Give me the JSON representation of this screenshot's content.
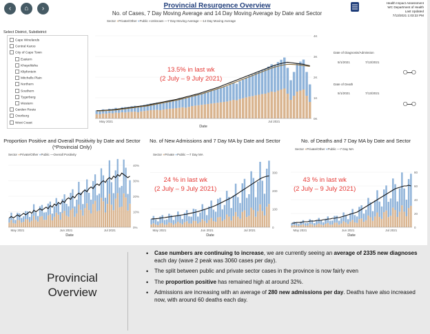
{
  "nav": {
    "left_arrow": "‹",
    "home": "⌂",
    "right_arrow": "›"
  },
  "header": {
    "title": "Provincial Resurgence Overview",
    "subtitle": "No. of Cases, 7 Day Moving Average and 14 Day Moving Average by Date and Sector",
    "logo_lines": [
      "Health Impact Assessment",
      "WC Department of Health",
      "Last Updated",
      "7/13/2021 1:03:22 PM"
    ]
  },
  "main_legend": {
    "sector": "Sector",
    "items": [
      "Private/Other",
      "Public",
      "Unknown",
      "7 Day Moving Average",
      "14 Day Moving Average"
    ]
  },
  "filter": {
    "header": "Select District, Subdistrict",
    "items": [
      {
        "label": "Cape Winelands",
        "indent": 0
      },
      {
        "label": "Central Karoo",
        "indent": 0
      },
      {
        "label": "City of Cape Town",
        "indent": 0
      },
      {
        "label": "Eastern",
        "indent": 1
      },
      {
        "label": "Khayelitsha",
        "indent": 1
      },
      {
        "label": "Klipfontein",
        "indent": 1
      },
      {
        "label": "Mitchells Plain",
        "indent": 1
      },
      {
        "label": "Northern",
        "indent": 1
      },
      {
        "label": "Southern",
        "indent": 1
      },
      {
        "label": "Tygerberg",
        "indent": 1
      },
      {
        "label": "Western",
        "indent": 1
      },
      {
        "label": "Garden Route",
        "indent": 0
      },
      {
        "label": "Overberg",
        "indent": 0
      },
      {
        "label": "West Coast",
        "indent": 0
      }
    ]
  },
  "side_filters": {
    "diagnosis_label": "Date of Diagnosis/Admission",
    "diagnosis_from": "5/1/2021",
    "diagnosis_to": "7/13/2021",
    "death_label": "Date of Death",
    "death_from": "5/1/2021",
    "death_to": "7/13/2021",
    "glasses": "○‒○"
  },
  "colors": {
    "private": "#d9b48f",
    "public": "#8fb3d9",
    "unknown": "#9e9e9e",
    "ma7": "#111111",
    "ma14": "#8a6d3b",
    "accent": "#e53935",
    "title_blue": "#1f3d7a"
  },
  "chart_data": [
    {
      "type": "bar",
      "title": "No. of Cases, 7 Day Moving Average and 14 Day Moving Average by Date and Sector",
      "xlabel": "Date",
      "ylabel": "",
      "x_ticks": [
        "May 2021",
        "Jul 2021"
      ],
      "y_ticks": [
        "0K",
        "1K",
        "2K",
        "3K",
        "4K"
      ],
      "ylim": [
        0,
        4200
      ],
      "series": [
        {
          "name": "Private/Other",
          "values": [
            210,
            200,
            240,
            230,
            260,
            250,
            280,
            270,
            300,
            290,
            310,
            320,
            330,
            300,
            340,
            360,
            380,
            400,
            410,
            420,
            400,
            430,
            450,
            470,
            480,
            500,
            520,
            540,
            520,
            560,
            600,
            620,
            640,
            660,
            680,
            700,
            720,
            740,
            760,
            780,
            800,
            820,
            860,
            900,
            880,
            940,
            980,
            1020,
            1060,
            1080,
            1120,
            1150,
            1180,
            1200,
            1250,
            1300,
            1280,
            1350,
            1400,
            1450,
            1200,
            900,
            1100,
            1300,
            1350,
            1400,
            1100,
            800
          ]
        },
        {
          "name": "Public",
          "values": [
            180,
            170,
            200,
            190,
            210,
            220,
            230,
            210,
            240,
            260,
            250,
            270,
            280,
            260,
            290,
            300,
            310,
            320,
            330,
            350,
            340,
            360,
            380,
            390,
            400,
            420,
            440,
            460,
            450,
            480,
            500,
            520,
            540,
            560,
            580,
            600,
            620,
            650,
            670,
            700,
            720,
            740,
            780,
            820,
            800,
            860,
            900,
            950,
            1000,
            1040,
            1080,
            1120,
            1160,
            1200,
            1260,
            1320,
            1300,
            1380,
            1440,
            1500,
            1250,
            950,
            1150,
            1350,
            1400,
            1450,
            1150,
            850
          ]
        },
        {
          "name": "7 Day Moving Average",
          "values": [
            380,
            380,
            390,
            400,
            410,
            420,
            440,
            460,
            480,
            500,
            520,
            540,
            560,
            580,
            600,
            620,
            650,
            680,
            710,
            740,
            770,
            800,
            830,
            860,
            890,
            920,
            960,
            1000,
            1040,
            1080,
            1120,
            1160,
            1200,
            1250,
            1300,
            1350,
            1400,
            1450,
            1500,
            1560,
            1620,
            1680,
            1740,
            1800,
            1860,
            1920,
            1980,
            2040,
            2100,
            2160,
            2220,
            2280,
            2340,
            2400,
            2460,
            2520,
            2580,
            2620,
            2660,
            2700,
            2720,
            2700,
            2680,
            2660,
            2640,
            2620,
            2580,
            2550
          ]
        },
        {
          "name": "14 Day Moving Average",
          "values": [
            360,
            365,
            370,
            380,
            390,
            400,
            410,
            430,
            450,
            470,
            490,
            510,
            530,
            550,
            570,
            590,
            610,
            640,
            670,
            700,
            730,
            760,
            790,
            820,
            850,
            880,
            910,
            950,
            990,
            1030,
            1070,
            1110,
            1150,
            1190,
            1240,
            1290,
            1340,
            1390,
            1440,
            1490,
            1540,
            1600,
            1660,
            1720,
            1780,
            1840,
            1900,
            1960,
            2020,
            2080,
            2140,
            2200,
            2260,
            2320,
            2380,
            2440,
            2490,
            2530,
            2570,
            2600,
            2620,
            2620,
            2610,
            2600,
            2580,
            2560,
            2540,
            2520
          ]
        }
      ],
      "annotation": {
        "line1": "13.5% in last wk",
        "line2": "(2 July – 9 July 2021)"
      }
    },
    {
      "type": "bar",
      "title": "Proportion Positive and Overall Positivity by Date and Sector (*Provincial Only)",
      "xlabel": "Date",
      "legend": {
        "sector": "Sector",
        "items": [
          "Private/Other",
          "Public",
          "Overall Positivity"
        ]
      },
      "x_ticks": [
        "May 2021",
        "Jun 2021",
        "Jul 2021"
      ],
      "y_ticks": [
        "0%",
        "10%",
        "20%",
        "30%",
        "40%"
      ],
      "ylim": [
        0,
        40
      ],
      "series": [
        {
          "name": "Overall Positivity",
          "values": [
            6,
            7,
            6,
            7,
            8,
            7,
            8,
            9,
            8,
            9,
            10,
            9,
            11,
            10,
            11,
            12,
            11,
            12,
            13,
            12,
            14,
            13,
            15,
            14,
            16,
            15,
            17,
            16,
            18,
            19,
            18,
            20,
            19,
            21,
            22,
            21,
            23,
            24,
            23,
            25,
            26,
            25,
            27,
            28,
            27,
            29,
            30,
            29,
            31,
            32,
            31,
            33,
            32,
            34,
            33,
            35,
            34,
            33,
            32,
            33
          ]
        }
      ]
    },
    {
      "type": "bar",
      "title": "No. of New Admissions and 7 Day MA by Date and Sector",
      "xlabel": "Date",
      "legend": {
        "sector": "Sector",
        "items": [
          "Private",
          "Public",
          "7 Day MA"
        ]
      },
      "x_ticks": [
        "May 2021",
        "Jun 2021",
        "Jul 2021"
      ],
      "y_ticks": [
        "0",
        "100",
        "200",
        "300"
      ],
      "ylim": [
        0,
        340
      ],
      "series": [
        {
          "name": "7 Day MA",
          "values": [
            45,
            46,
            47,
            48,
            50,
            52,
            53,
            55,
            57,
            58,
            60,
            62,
            64,
            66,
            68,
            70,
            72,
            75,
            78,
            80,
            83,
            86,
            90,
            94,
            98,
            102,
            106,
            110,
            115,
            120,
            126,
            132,
            138,
            144,
            150,
            156,
            162,
            170,
            178,
            186,
            194,
            202,
            210,
            218,
            226,
            234,
            242,
            250,
            258,
            266,
            272,
            276,
            280,
            282
          ]
        }
      ],
      "annotation": {
        "line1": "24 % in last wk",
        "line2": "(2 July – 9 July 2021)"
      }
    },
    {
      "type": "bar",
      "title": "No. of Deaths and 7 Day MA by Date and Sector",
      "xlabel": "Date",
      "legend": {
        "sector": "Sector",
        "items": [
          "Private/Other",
          "Public",
          "7 Day MA"
        ]
      },
      "x_ticks": [
        "May 2021",
        "Jun 2021",
        "Jul 2021"
      ],
      "y_ticks": [
        "0",
        "20",
        "40",
        "60",
        "80"
      ],
      "ylim": [
        0,
        90
      ],
      "series": [
        {
          "name": "7 Day MA",
          "values": [
            6,
            6,
            7,
            7,
            7,
            8,
            8,
            8,
            9,
            9,
            9,
            10,
            10,
            10,
            11,
            11,
            12,
            12,
            13,
            13,
            14,
            14,
            15,
            16,
            17,
            18,
            19,
            20,
            21,
            22,
            24,
            26,
            28,
            30,
            32,
            34,
            36,
            38,
            40,
            42,
            44,
            46,
            48,
            50,
            52,
            54,
            56,
            57,
            58,
            59,
            60,
            60,
            61,
            60
          ]
        }
      ],
      "annotation": {
        "line1": "43 % in last wk",
        "line2": "(2 July – 9 July 2021)"
      }
    }
  ],
  "overview": {
    "title_line1": "Provincial",
    "title_line2": "Overview",
    "bullets": [
      {
        "bold1": "Case numbers are continuing to increase",
        "text1": ", we are currently seeing an ",
        "bold2": "average of 2335 new diagnoses",
        "text2": " each day (wave 2 peak was 3060 cases per day)."
      },
      {
        "bold1": "",
        "text1": "The split between public and private sector cases in the province is now fairly even",
        "bold2": "",
        "text2": ""
      },
      {
        "bold1": "",
        "text1": "The ",
        "bold2": "proportion positive",
        "text2": " has remained high at around 32%."
      },
      {
        "bold1": "",
        "text1": "Admissions are increasing with an average of ",
        "bold2": "280 new admissions per day",
        "text2": ". Deaths have also increased now, with around 60 deaths each day."
      }
    ]
  }
}
